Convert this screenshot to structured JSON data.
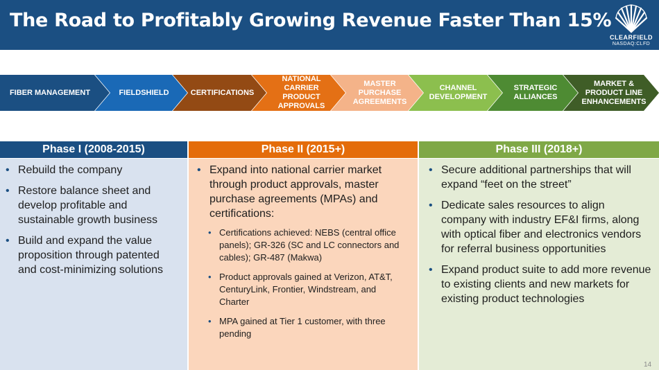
{
  "header": {
    "title": "The Road to Profitably Growing Revenue Faster Than 15%",
    "logo_name": "CLEARFIELD",
    "logo_ticker": "NASDAQ:CLFD",
    "background_color": "#1b4f82"
  },
  "chevrons": [
    {
      "label": "FIBER MANAGEMENT",
      "color": "#1b4f82"
    },
    {
      "label": "FIELDSHIELD",
      "color": "#1a69b6"
    },
    {
      "label": "CERTIFICATIONS",
      "color": "#934a14"
    },
    {
      "label": "NATIONAL CARRIER PRODUCT APPROVALS",
      "color": "#e47015"
    },
    {
      "label": "MASTER PURCHASE AGREEMENTS",
      "color": "#f4b389"
    },
    {
      "label": "CHANNEL DEVELOPMENT",
      "color": "#8cbf4e"
    },
    {
      "label": "STRATEGIC ALLIANCES",
      "color": "#4e8b33"
    },
    {
      "label": "MARKET & PRODUCT LINE ENHANCEMENTS",
      "color": "#3f5d27"
    }
  ],
  "phases": [
    {
      "heading": "Phase I (2008-2015)",
      "head_color": "#1b4f82",
      "body_color": "#d9e2ef",
      "bullets": [
        "Rebuild the company",
        "Restore balance sheet and develop profitable and sustainable growth business",
        "Build and expand the value proposition through patented and cost-minimizing solutions"
      ]
    },
    {
      "heading": "Phase II (2015+)",
      "head_color": "#e46c0a",
      "body_color": "#fbd6bc",
      "bullets": [
        "Expand into national carrier market through product approvals, master purchase agreements (MPAs) and certifications:"
      ],
      "sub_bullets": [
        "Certifications achieved: NEBS (central office panels); GR-326 (SC and LC connectors and cables); GR-487 (Makwa)",
        "Product approvals gained at Verizon, AT&T, CenturyLink, Frontier, Windstream, and Charter",
        "MPA gained at Tier 1 customer, with three pending"
      ]
    },
    {
      "heading": "Phase III (2018+)",
      "head_color": "#7fa846",
      "body_color": "#e4ecd6",
      "bullets": [
        "Secure additional partnerships that will expand “feet on the street”",
        "Dedicate sales resources to align company with industry EF&I firms, along with optical fiber and electronics vendors for referral business opportunities",
        "Expand product suite to add more revenue to existing clients and new markets for existing product technologies"
      ]
    }
  ],
  "page_number": "14"
}
